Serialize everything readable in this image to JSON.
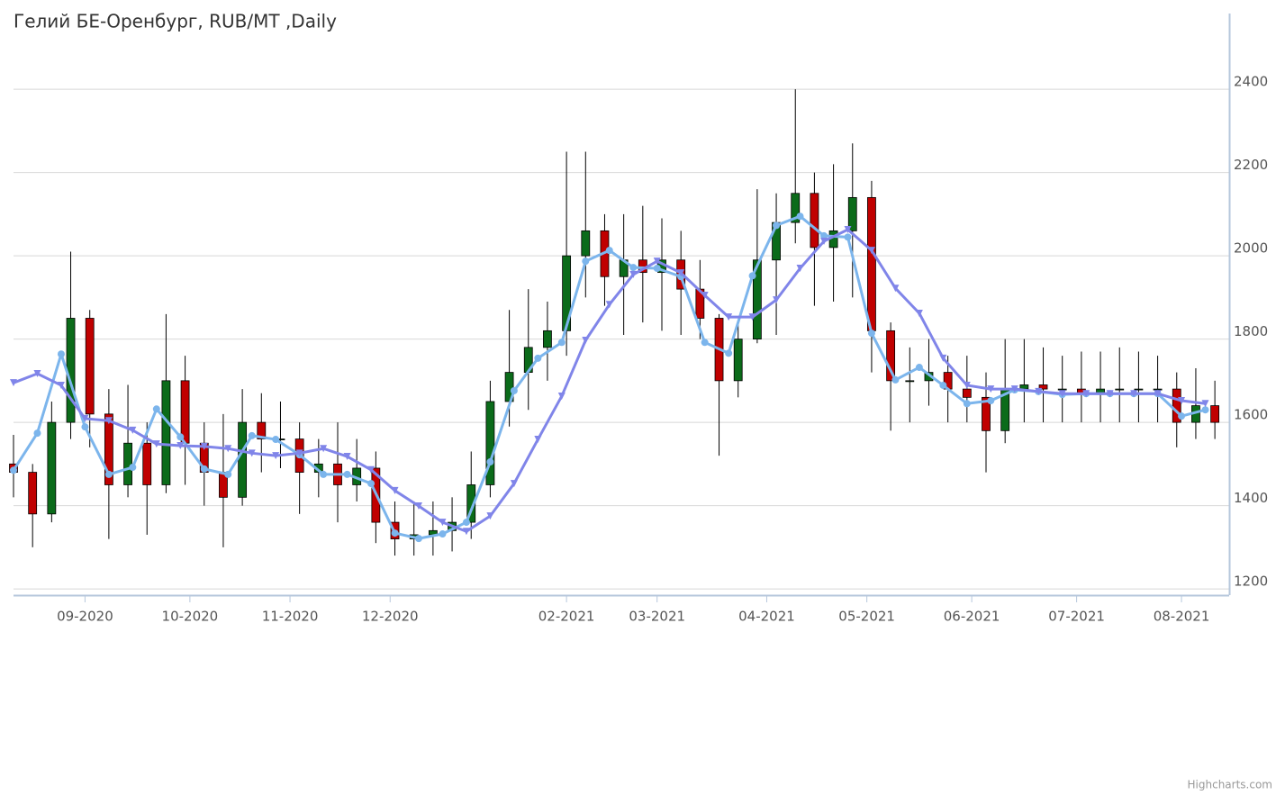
{
  "chart_data": {
    "type": "candlestick",
    "title": "Гелий БЕ-Оренбург, RUB/MT ,Daily",
    "credits": "Highcharts.com",
    "up_color": "#0b6b1a",
    "down_color": "#c00000",
    "x": [
      0,
      4,
      8,
      12,
      16,
      20,
      24,
      28,
      32,
      36,
      40,
      44,
      48,
      52,
      56,
      60,
      64,
      68,
      72,
      76,
      80,
      84,
      88,
      92,
      96,
      100,
      104,
      108,
      112,
      116,
      120,
      124,
      128,
      132,
      136,
      140,
      144,
      148,
      152,
      156,
      160,
      164,
      168,
      172,
      176,
      180,
      184,
      188,
      192,
      196,
      200,
      204,
      208,
      212,
      216,
      220,
      224,
      228,
      232,
      236,
      240,
      244,
      248,
      252
    ],
    "open": [
      1500,
      1480,
      1380,
      1600,
      1850,
      1620,
      1450,
      1550,
      1450,
      1700,
      1550,
      1480,
      1420,
      1600,
      1560,
      1560,
      1480,
      1500,
      1450,
      1490,
      1360,
      1320,
      1330,
      1340,
      1360,
      1450,
      1650,
      1720,
      1780,
      1820,
      2000,
      2060,
      1950,
      1990,
      1960,
      1990,
      1920,
      1850,
      1700,
      1800,
      1990,
      2080,
      2150,
      2020,
      2060,
      2140,
      1820,
      1700,
      1700,
      1720,
      1680,
      1660,
      1580,
      1680,
      1690,
      1680,
      1680,
      1670,
      1680,
      1680,
      1680,
      1680,
      1600,
      1640
    ],
    "high": [
      1570,
      1500,
      1650,
      2010,
      1870,
      1680,
      1690,
      1600,
      1860,
      1760,
      1600,
      1620,
      1680,
      1670,
      1650,
      1600,
      1560,
      1600,
      1560,
      1530,
      1410,
      1410,
      1410,
      1420,
      1530,
      1700,
      1870,
      1920,
      1890,
      2250,
      2250,
      2100,
      2100,
      2120,
      2090,
      2060,
      1990,
      1860,
      1840,
      2160,
      2150,
      2400,
      2200,
      2220,
      2270,
      2180,
      1840,
      1780,
      1800,
      1760,
      1760,
      1720,
      1800,
      1800,
      1780,
      1760,
      1770,
      1770,
      1780,
      1770,
      1760,
      1720,
      1730,
      1700
    ],
    "low": [
      1420,
      1300,
      1360,
      1560,
      1540,
      1320,
      1420,
      1330,
      1430,
      1450,
      1400,
      1300,
      1400,
      1480,
      1490,
      1380,
      1420,
      1360,
      1410,
      1310,
      1280,
      1280,
      1280,
      1290,
      1320,
      1420,
      1590,
      1630,
      1700,
      1760,
      1900,
      1880,
      1810,
      1840,
      1820,
      1810,
      1800,
      1520,
      1660,
      1790,
      1810,
      2030,
      1880,
      1890,
      1900,
      1720,
      1580,
      1600,
      1640,
      1600,
      1600,
      1480,
      1550,
      1600,
      1600,
      1600,
      1600,
      1600,
      1600,
      1600,
      1600,
      1540,
      1560,
      1560
    ],
    "close": [
      1480,
      1380,
      1600,
      1850,
      1620,
      1450,
      1550,
      1450,
      1700,
      1550,
      1480,
      1420,
      1600,
      1560,
      1560,
      1480,
      1500,
      1450,
      1490,
      1360,
      1320,
      1330,
      1340,
      1360,
      1450,
      1650,
      1720,
      1780,
      1820,
      2000,
      2060,
      1950,
      1990,
      1960,
      1990,
      1920,
      1850,
      1700,
      1800,
      1990,
      2080,
      2150,
      2020,
      2060,
      2140,
      1820,
      1700,
      1700,
      1720,
      1680,
      1660,
      1580,
      1680,
      1690,
      1680,
      1680,
      1670,
      1680,
      1680,
      1680,
      1680,
      1600,
      1640,
      1600
    ],
    "overlays": [
      {
        "type": "line",
        "color": "#7cb5ec",
        "marker": "circle",
        "x": [
          0,
          5,
          10,
          15,
          20,
          25,
          30,
          35,
          40,
          45,
          50,
          55,
          60,
          65,
          70,
          75,
          80,
          85,
          90,
          95,
          100,
          105,
          110,
          115,
          120,
          125,
          130,
          135,
          140,
          145,
          150,
          155,
          160,
          165,
          170,
          175,
          180,
          185,
          190,
          195,
          200,
          205,
          210,
          215,
          220,
          225,
          230,
          235,
          240,
          245,
          250
        ],
        "values": [
          1485,
          1574,
          1764,
          1589,
          1475,
          1492,
          1632,
          1565,
          1488,
          1475,
          1568,
          1559,
          1522,
          1475,
          1475,
          1453,
          1334,
          1321,
          1332,
          1360,
          1505,
          1676,
          1754,
          1792,
          1987,
          2013,
          1972,
          1970,
          1950,
          1792,
          1766,
          1952,
          2073,
          2095,
          2048,
          2045,
          1814,
          1702,
          1732,
          1689,
          1645,
          1652,
          1678,
          1674,
          1667,
          1669,
          1669,
          1669,
          1669,
          1615,
          1630
        ]
      },
      {
        "type": "line",
        "color": "#8085e9",
        "marker": "triangle-down",
        "x": [
          0,
          5,
          10,
          15,
          20,
          25,
          30,
          35,
          40,
          45,
          50,
          55,
          60,
          65,
          70,
          75,
          80,
          85,
          90,
          95,
          100,
          105,
          110,
          115,
          120,
          125,
          130,
          135,
          140,
          145,
          150,
          155,
          160,
          165,
          170,
          175,
          180,
          185,
          190,
          195,
          200,
          205,
          210,
          215,
          220,
          225,
          230,
          235,
          240,
          245,
          250
        ],
        "values": [
          1695,
          1717,
          1689,
          1609,
          1604,
          1581,
          1548,
          1544,
          1542,
          1537,
          1526,
          1520,
          1526,
          1537,
          1518,
          1486,
          1436,
          1399,
          1360,
          1338,
          1375,
          1453,
          1559,
          1663,
          1797,
          1883,
          1955,
          1987,
          1959,
          1905,
          1853,
          1853,
          1894,
          1970,
          2035,
          2063,
          2013,
          1922,
          1862,
          1754,
          1689,
          1680,
          1680,
          1674,
          1669,
          1669,
          1669,
          1669,
          1669,
          1652,
          1645
        ]
      }
    ],
    "xlim": [
      0,
      255
    ],
    "xticks": [
      {
        "value": 15,
        "label": "09-2020"
      },
      {
        "value": 37,
        "label": "10-2020"
      },
      {
        "value": 58,
        "label": "11-2020"
      },
      {
        "value": 79,
        "label": "12-2020"
      },
      {
        "value": 116,
        "label": "02-2021"
      },
      {
        "value": 135,
        "label": "03-2021"
      },
      {
        "value": 158,
        "label": "04-2021"
      },
      {
        "value": 179,
        "label": "05-2021"
      },
      {
        "value": 201,
        "label": "06-2021"
      },
      {
        "value": 223,
        "label": "07-2021"
      },
      {
        "value": 245,
        "label": "08-2021"
      }
    ],
    "ylim": [
      1185,
      2582
    ],
    "yticks": [
      1200,
      1400,
      1600,
      1800,
      2000,
      2200,
      2400
    ],
    "grid": true
  }
}
